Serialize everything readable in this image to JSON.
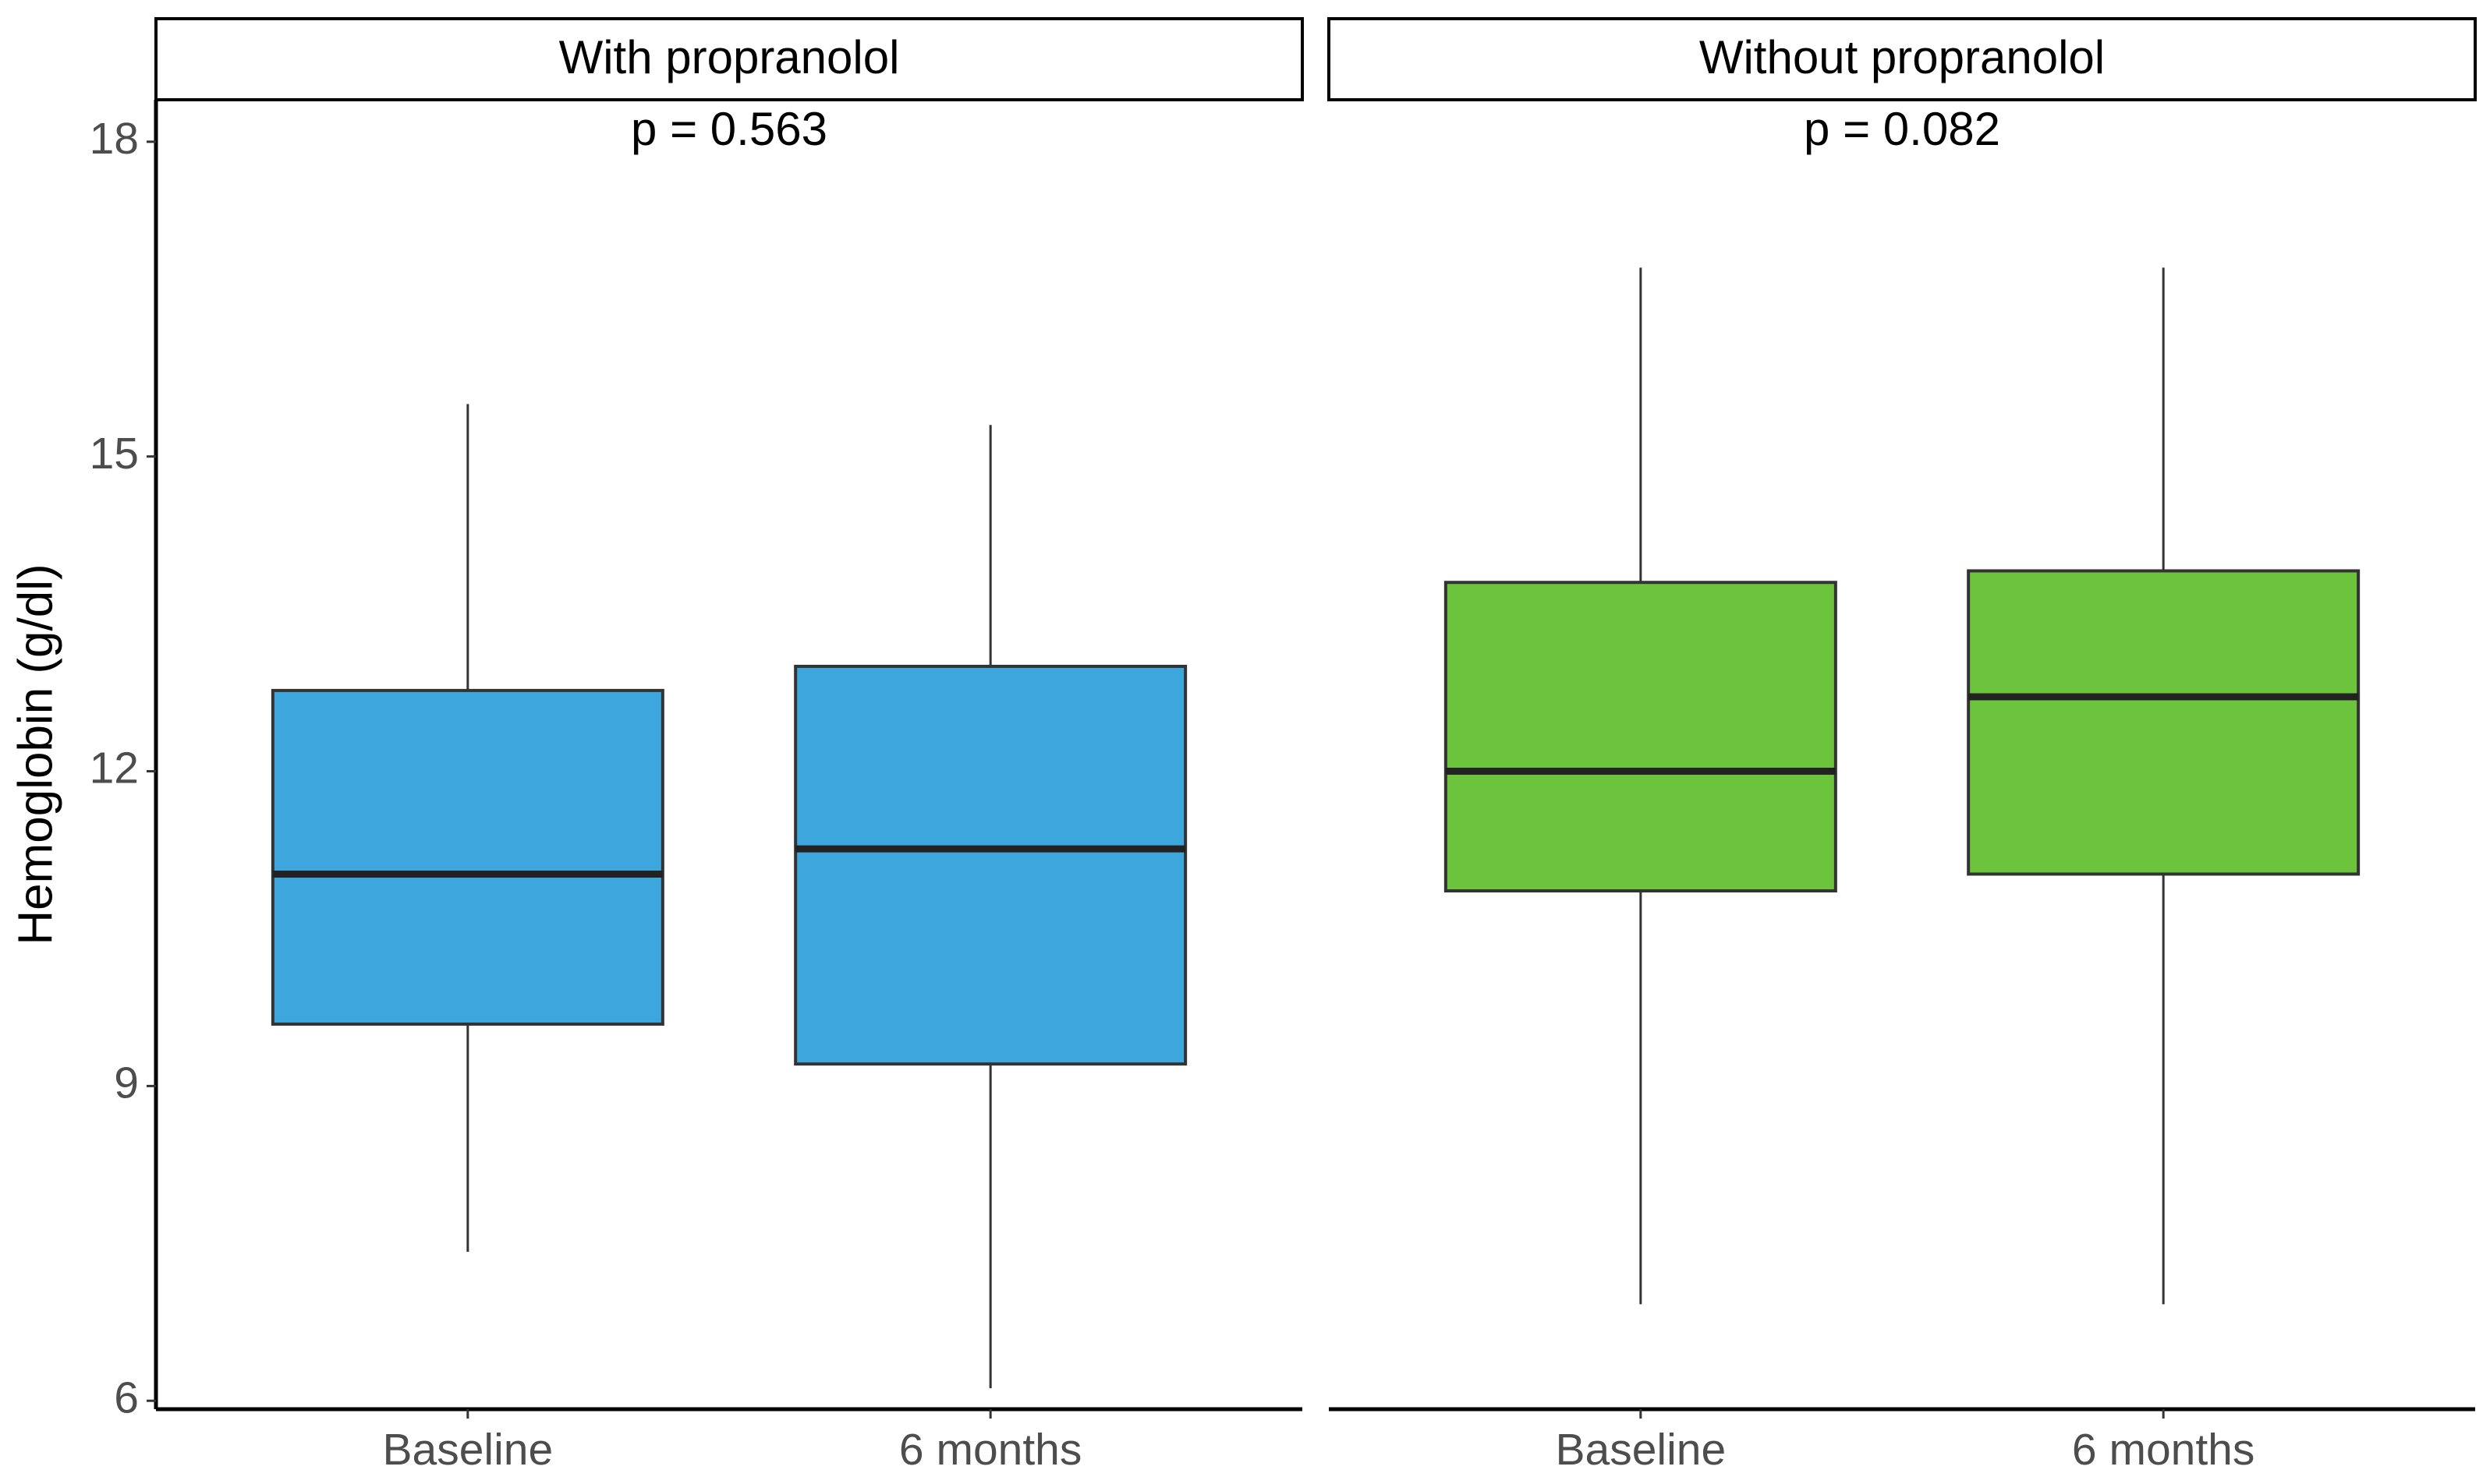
{
  "chart_data": [
    {
      "type": "box",
      "title": "With propranolol",
      "annotation": "p = 0.563",
      "ylabel": "Hemoglobin (g/dl)",
      "categories": [
        "Baseline",
        "6 months"
      ],
      "color": "#3da7dd",
      "boxes": [
        {
          "whislo": 7.42,
          "q1": 9.59,
          "med": 11.02,
          "q3": 12.77,
          "whishi": 15.5
        },
        {
          "whislo": 6.12,
          "q1": 9.21,
          "med": 11.26,
          "q3": 13.0,
          "whishi": 15.3
        }
      ],
      "ylim": [
        5.92,
        18.4
      ],
      "yticks": [
        6,
        9,
        12,
        15,
        18
      ]
    },
    {
      "type": "box",
      "title": "Without propranolol",
      "annotation": "p = 0.082",
      "categories": [
        "Baseline",
        "6 months"
      ],
      "color": "#6cc43c",
      "boxes": [
        {
          "whislo": 6.92,
          "q1": 10.86,
          "med": 12.0,
          "q3": 13.8,
          "whishi": 16.8
        },
        {
          "whislo": 6.92,
          "q1": 11.02,
          "med": 12.71,
          "q3": 13.91,
          "whishi": 16.8
        }
      ],
      "ylim": [
        5.92,
        18.4
      ]
    }
  ]
}
